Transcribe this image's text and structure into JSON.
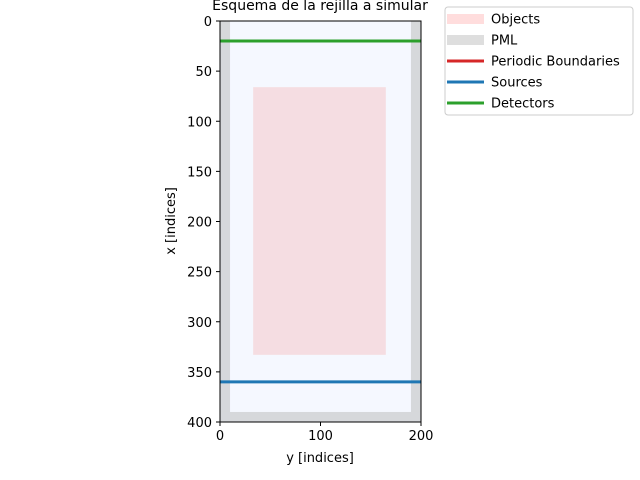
{
  "chart_data": {
    "type": "heatmap",
    "title": "Esquema de la rejilla a simular",
    "xlabel": "y [indices]",
    "ylabel": "x [indices]",
    "xlim": [
      0,
      200
    ],
    "ylim": [
      400,
      0
    ],
    "xticks": [
      0,
      100,
      200
    ],
    "yticks": [
      0,
      50,
      100,
      150,
      200,
      250,
      300,
      350,
      400
    ],
    "grid_background_color": "#f5f8ff",
    "layers": [
      {
        "name": "PML",
        "kind": "region",
        "color": "#d6d8db",
        "rects": [
          {
            "y0": 0,
            "y1": 10,
            "x0": 0,
            "x1": 400
          },
          {
            "y0": 190,
            "y1": 200,
            "x0": 0,
            "x1": 400
          },
          {
            "y0": 0,
            "y1": 200,
            "x0": 390,
            "x1": 400
          }
        ]
      },
      {
        "name": "Objects",
        "kind": "region",
        "color": "#f5dde2",
        "rects": [
          {
            "y0": 33,
            "y1": 165,
            "x0": 66,
            "x1": 333
          }
        ]
      },
      {
        "name": "Detectors",
        "kind": "line",
        "color": "#2ca02c",
        "x": 20,
        "y0": 0,
        "y1": 200
      },
      {
        "name": "Sources",
        "kind": "line",
        "color": "#1f77b4",
        "x": 360,
        "y0": 0,
        "y1": 200
      }
    ],
    "legend": {
      "placement": "outside-top-right",
      "entries": [
        {
          "label": "Objects",
          "color": "#ffdddd",
          "style": "patch"
        },
        {
          "label": "PML",
          "color": "#dedede",
          "style": "patch"
        },
        {
          "label": "Periodic Boundaries",
          "color": "#d62728",
          "style": "line"
        },
        {
          "label": "Sources",
          "color": "#1f77b4",
          "style": "line"
        },
        {
          "label": "Detectors",
          "color": "#2ca02c",
          "style": "line"
        }
      ]
    }
  }
}
